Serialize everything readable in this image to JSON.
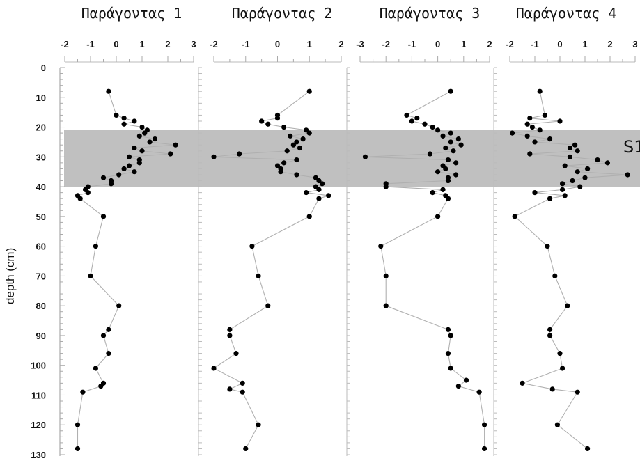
{
  "chart_data": {
    "type": "line",
    "ylabel": "depth (cm)",
    "ylim": [
      0,
      130
    ],
    "y_ticks": [
      0,
      10,
      20,
      30,
      40,
      50,
      60,
      70,
      80,
      90,
      100,
      110,
      120,
      130
    ],
    "y_reversed": true,
    "highlight_band": {
      "label": "S1",
      "from": 21,
      "to": 40,
      "color": "#c0c0c0"
    },
    "line_color": "#b0b0b0",
    "marker_color": "#000000",
    "panels": [
      {
        "title": "Παράγοντας 1",
        "xlim": [
          -2,
          3
        ],
        "x_ticks": [
          -2,
          -1,
          0,
          1,
          2,
          3
        ],
        "depth": [
          8,
          16,
          17,
          18,
          19,
          20,
          21,
          22,
          23,
          24,
          25,
          26,
          27,
          28,
          29,
          30,
          31,
          32,
          33,
          34,
          35,
          36,
          37,
          38,
          39,
          40,
          41,
          42,
          43,
          44,
          50,
          60,
          70,
          80,
          88,
          90,
          96,
          101,
          106,
          107,
          109,
          120,
          128
        ],
        "values": [
          -0.3,
          0.0,
          0.3,
          0.7,
          0.3,
          1.0,
          1.2,
          1.1,
          0.9,
          1.5,
          1.3,
          2.3,
          0.7,
          1.0,
          2.1,
          0.5,
          0.9,
          0.9,
          0.5,
          0.3,
          0.7,
          0.1,
          -0.5,
          -0.2,
          -0.2,
          -1.1,
          -1.2,
          -1.1,
          -1.5,
          -1.4,
          -0.5,
          -0.8,
          -1.0,
          0.1,
          -0.3,
          -0.5,
          -0.3,
          -0.8,
          -0.5,
          -0.6,
          -1.3,
          -1.5,
          -1.5
        ]
      },
      {
        "title": "Παράγοντας 2",
        "xlim": [
          -2,
          2
        ],
        "x_ticks": [
          -2,
          -1,
          0,
          1,
          2
        ],
        "depth": [
          8,
          16,
          17,
          18,
          19,
          20,
          21,
          22,
          23,
          24,
          25,
          26,
          27,
          28,
          29,
          30,
          31,
          32,
          33,
          34,
          35,
          36,
          37,
          38,
          39,
          40,
          41,
          42,
          43,
          44,
          50,
          60,
          70,
          80,
          88,
          90,
          96,
          101,
          106,
          108,
          109,
          120,
          128
        ],
        "values": [
          1.0,
          0.0,
          0.0,
          -0.5,
          -0.3,
          0.2,
          0.9,
          1.0,
          0.4,
          0.8,
          0.6,
          0.5,
          0.7,
          0.3,
          -1.2,
          -2.0,
          0.6,
          0.2,
          0.0,
          0.1,
          0.1,
          0.6,
          1.2,
          1.3,
          1.4,
          1.2,
          1.3,
          0.9,
          1.6,
          1.3,
          1.0,
          -0.8,
          -0.6,
          -0.3,
          -1.5,
          -1.5,
          -1.3,
          -2.0,
          -1.1,
          -1.5,
          -1.1,
          -0.6,
          -1.0
        ]
      },
      {
        "title": "Παράγοντας 3",
        "xlim": [
          -3,
          2
        ],
        "x_ticks": [
          -3,
          -2,
          -1,
          0,
          1,
          2
        ],
        "depth": [
          8,
          16,
          17,
          18,
          19,
          20,
          21,
          22,
          23,
          24,
          25,
          26,
          27,
          28,
          29,
          30,
          31,
          32,
          33,
          34,
          35,
          36,
          37,
          38,
          39,
          40,
          41,
          42,
          43,
          44,
          50,
          60,
          70,
          80,
          88,
          90,
          96,
          101,
          105,
          107,
          109,
          120,
          128
        ],
        "values": [
          0.5,
          -1.2,
          -0.8,
          -1.0,
          -0.5,
          -0.2,
          0.0,
          0.5,
          0.2,
          0.8,
          0.5,
          0.9,
          0.3,
          0.6,
          -0.3,
          -2.8,
          0.4,
          0.7,
          0.2,
          0.3,
          0.0,
          0.7,
          0.4,
          0.4,
          -2.0,
          -2.0,
          0.2,
          -0.2,
          0.3,
          0.4,
          0.0,
          -2.2,
          -2.0,
          -2.0,
          0.4,
          0.5,
          0.4,
          0.5,
          1.1,
          0.8,
          1.6,
          1.8,
          1.8
        ]
      },
      {
        "title": "Παράγοντας 4",
        "xlim": [
          -2,
          3
        ],
        "x_ticks": [
          -2,
          -1,
          0,
          1,
          2,
          3
        ],
        "depth": [
          8,
          16,
          17,
          18,
          19,
          20,
          21,
          22,
          23,
          24,
          25,
          26,
          27,
          28,
          29,
          30,
          31,
          32,
          33,
          34,
          35,
          36,
          37,
          38,
          39,
          40,
          41,
          42,
          43,
          44,
          50,
          60,
          70,
          80,
          88,
          90,
          96,
          101,
          106,
          108,
          109,
          120,
          128
        ],
        "values": [
          -0.8,
          -0.6,
          -1.2,
          0.0,
          -1.3,
          -1.1,
          -0.8,
          -1.9,
          -1.3,
          -0.4,
          -1.0,
          0.6,
          0.4,
          0.7,
          -1.2,
          0.4,
          1.5,
          1.9,
          0.2,
          1.1,
          0.7,
          2.7,
          1.0,
          0.5,
          0.1,
          0.8,
          0.1,
          -1.0,
          0.2,
          -0.4,
          -1.8,
          -0.5,
          -0.2,
          0.3,
          -0.4,
          -0.4,
          0.0,
          0.1,
          -1.5,
          -0.3,
          0.7,
          -0.1,
          1.1
        ]
      }
    ]
  }
}
